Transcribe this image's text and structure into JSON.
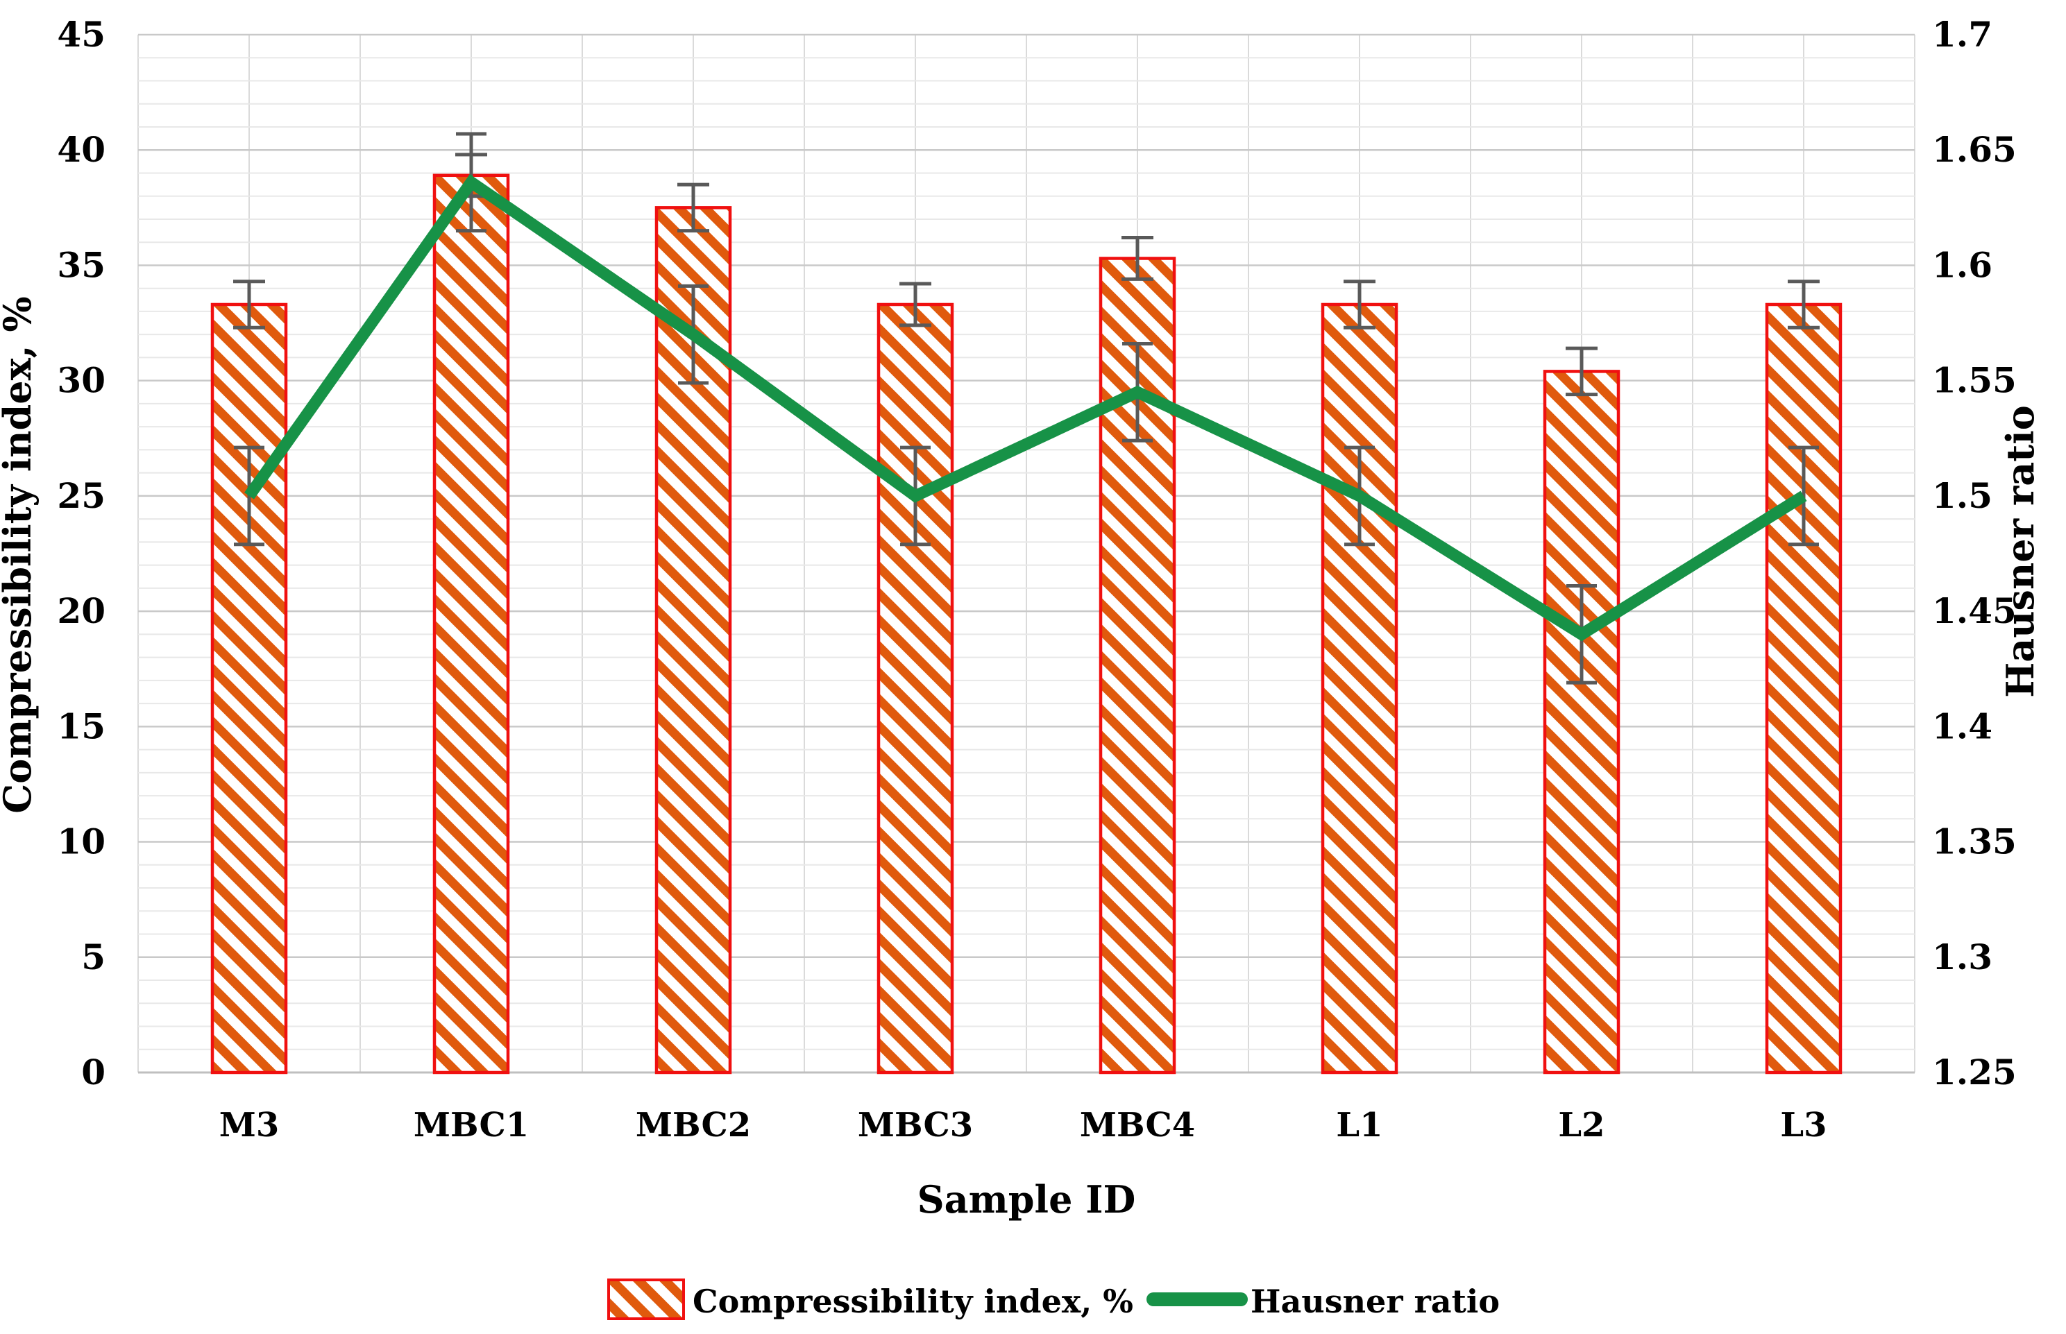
{
  "chart_data": {
    "type": "bar+line",
    "categories": [
      "M3",
      "MBC1",
      "MBC2",
      "MBC3",
      "MBC4",
      "L1",
      "L2",
      "L3"
    ],
    "series": [
      {
        "name": "Compressibility index, %",
        "type": "bar",
        "axis": "left",
        "values": [
          33.3,
          38.9,
          37.5,
          33.3,
          35.3,
          33.3,
          30.4,
          33.3
        ],
        "errors": [
          1.0,
          0.9,
          1.0,
          0.9,
          0.9,
          1.0,
          1.0,
          1.0
        ]
      },
      {
        "name": "Hausner ratio",
        "type": "line",
        "axis": "right",
        "values": [
          1.5,
          1.636,
          1.57,
          1.5,
          1.545,
          1.5,
          1.44,
          1.5
        ],
        "errors": [
          0.021,
          0.021,
          0.021,
          0.021,
          0.021,
          0.021,
          0.021,
          0.021
        ]
      }
    ],
    "left_axis": {
      "title": "Compressibility index, %",
      "min": 0,
      "max": 45,
      "major_step": 5,
      "minor_step": 1,
      "ticks": [
        "0",
        "5",
        "10",
        "15",
        "20",
        "25",
        "30",
        "35",
        "40",
        "45"
      ]
    },
    "right_axis": {
      "title": "Hausner ratio",
      "min": 1.25,
      "max": 1.7,
      "major_step": 0.05,
      "ticks": [
        "1.25",
        "1.3",
        "1.35",
        "1.4",
        "1.45",
        "1.5",
        "1.55",
        "1.6",
        "1.65",
        "1.7"
      ]
    },
    "x_axis": {
      "title": "Sample ID"
    },
    "legend": [
      {
        "label": "Compressibility index, %",
        "marker": "hatched-swatch"
      },
      {
        "label": "Hausner ratio",
        "marker": "green-line"
      }
    ],
    "grid": {
      "horizontal_minor": true,
      "horizontal_major": true,
      "vertical": true,
      "legend_position": "bottom"
    },
    "colors": {
      "bar_border": "#F01010",
      "bar_hatch": "#E05A0D",
      "bar_fill": "#FFFFFF",
      "line": "#179247",
      "error_bar": "#595959",
      "grid_minor": "#E8E8E8",
      "grid_major": "#C9C9C9",
      "grid_vertical": "#DADADA",
      "axis_line": "#BFBFBF",
      "text": "#000000"
    }
  }
}
